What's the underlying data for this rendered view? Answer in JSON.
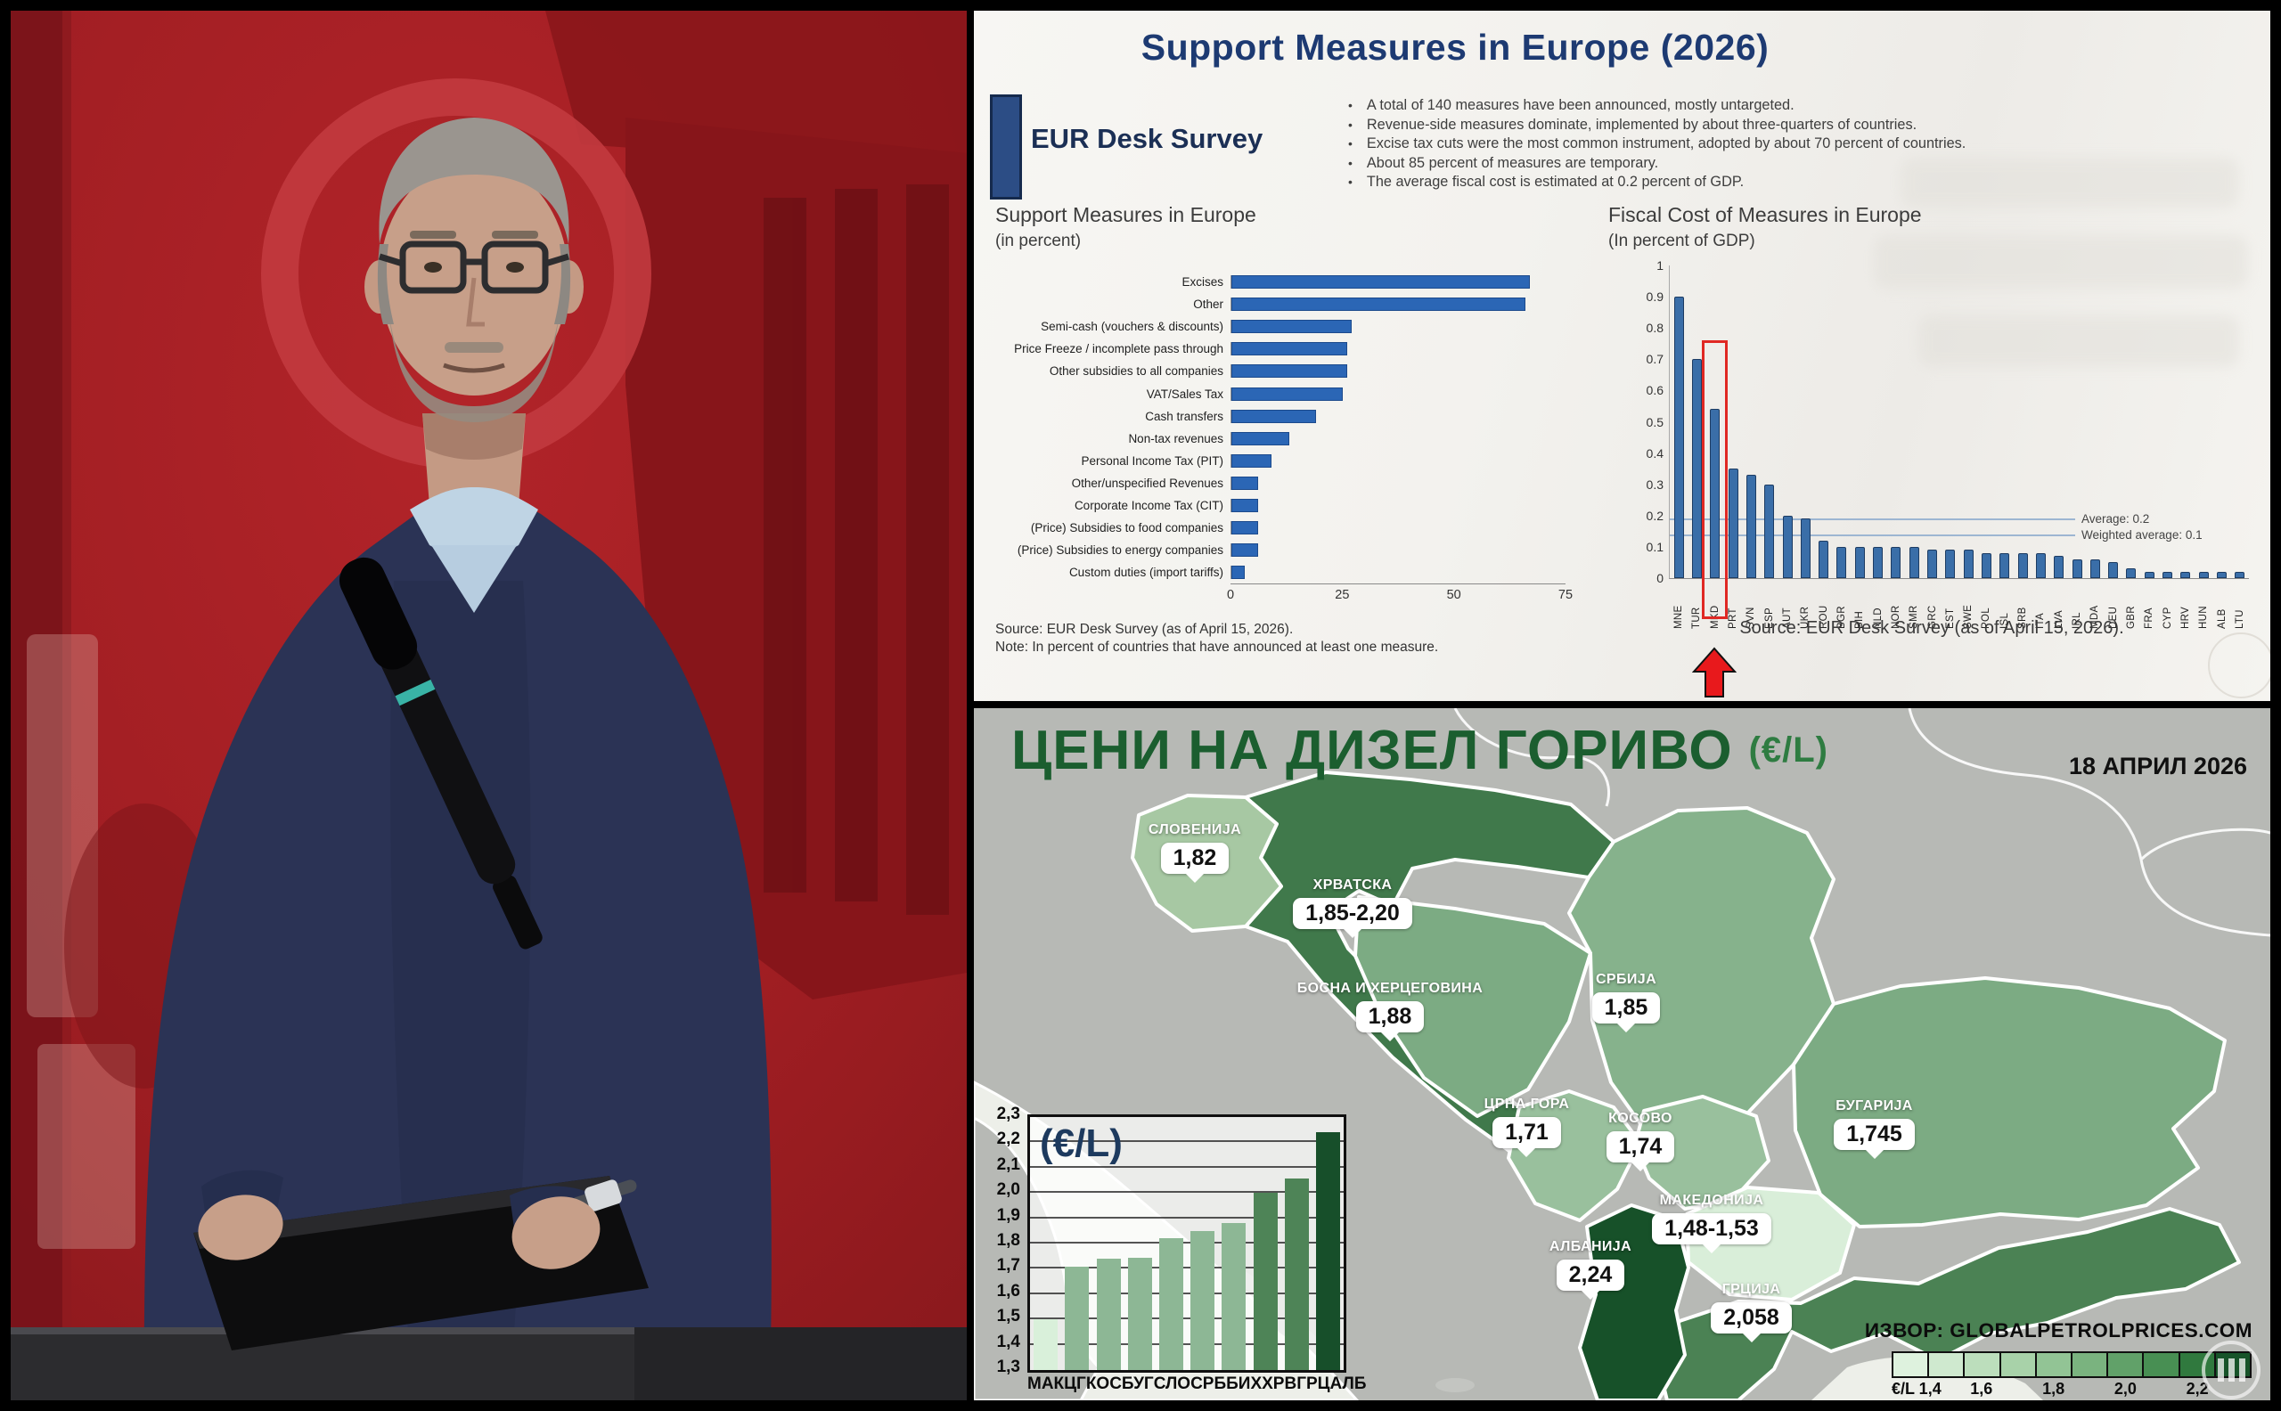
{
  "panels": {
    "doc": {
      "title": "Support Measures in Europe (2026)",
      "logo_label": "EUR Desk Survey",
      "bullets": [
        "A total of 140 measures have been announced, mostly untargeted.",
        "Revenue-side measures dominate, implemented by about three-quarters of countries.",
        "Excise tax cuts were the most common instrument, adopted by about 70 percent of countries.",
        "About 85 percent of measures are temporary.",
        "The average fiscal cost is estimated at 0.2 percent of GDP."
      ]
    },
    "map": {
      "title": "ЦЕНИ НА ДИЗЕЛ ГОРИВО",
      "unit": "(€/L)",
      "date": "18 АПРИЛ 2026",
      "source": "ИЗВОР: GLOBALPETROLPRICES.COM",
      "scale": {
        "unit_label": "€/L",
        "ticks": [
          "1,4",
          "1,6",
          "1,8",
          "2,0",
          "2,2"
        ]
      },
      "countries": [
        {
          "name": "СЛОВЕНИЈА",
          "price": "1,82",
          "shade": "light"
        },
        {
          "name": "ХРВАТСКА",
          "price": "1,85-2,20",
          "shade": "dark"
        },
        {
          "name": "БОСНА И ХЕРЦЕГОВИНА",
          "price": "1,88",
          "shade": "medium"
        },
        {
          "name": "СРБИЈА",
          "price": "1,85",
          "shade": "medium"
        },
        {
          "name": "ЦРНА ГОРА",
          "price": "1,71",
          "shade": "medium-light"
        },
        {
          "name": "КОСОВО",
          "price": "1,74",
          "shade": "medium-light"
        },
        {
          "name": "БУГАРИЈА",
          "price": "1,745",
          "shade": "medium"
        },
        {
          "name": "МАКЕДОНИЈА",
          "price": "1,48-1,53",
          "shade": "lightest"
        },
        {
          "name": "АЛБАНИЈА",
          "price": "2,24",
          "shade": "darkest"
        },
        {
          "name": "ГРЦИЈА",
          "price": "2,058",
          "shade": "dark"
        }
      ]
    }
  },
  "chart_data": [
    {
      "id": "support_measures",
      "type": "bar",
      "orientation": "horizontal",
      "title": "Support Measures in Europe",
      "subtitle": "(in percent)",
      "categories": [
        "Excises",
        "Other",
        "Semi-cash (vouchers & discounts)",
        "Price Freeze / incomplete pass through",
        "Other subsidies to all companies",
        "VAT/Sales Tax",
        "Cash transfers",
        "Non-tax revenues",
        "Personal Income Tax (PIT)",
        "Other/unspecified Revenues",
        "Corporate Income Tax (CIT)",
        "(Price) Subsidies to food companies",
        "(Price) Subsidies to energy companies",
        "Custom duties (import tariffs)"
      ],
      "values": [
        67,
        66,
        27,
        26,
        26,
        25,
        19,
        13,
        9,
        6,
        6,
        6,
        6,
        3
      ],
      "xlim": [
        0,
        75
      ],
      "xticks": [
        0,
        25,
        50,
        75
      ],
      "grid": false,
      "source": "Source: EUR Desk Survey (as of April 15, 2026).",
      "note": "Note: In percent of countries that have announced at least one measure."
    },
    {
      "id": "fiscal_cost",
      "type": "bar",
      "orientation": "vertical",
      "title": "Fiscal Cost of Measures in Europe",
      "subtitle": "(In percent of GDP)",
      "categories": [
        "MNE",
        "TUR",
        "MKD",
        "PRT",
        "SVN",
        "ESP",
        "AUT",
        "UKR",
        "ROU",
        "BGR",
        "BIH",
        "NLD",
        "NOR",
        "SMR",
        "GRC",
        "EST",
        "SWE",
        "POL",
        "ISL",
        "SRB",
        "ITA",
        "LVA",
        "IRL",
        "MDA",
        "DEU",
        "GBR",
        "FRA",
        "CYP",
        "HRV",
        "HUN",
        "ALB",
        "LTU"
      ],
      "values": [
        0.9,
        0.7,
        0.54,
        0.35,
        0.33,
        0.3,
        0.2,
        0.19,
        0.12,
        0.1,
        0.1,
        0.1,
        0.1,
        0.1,
        0.09,
        0.09,
        0.09,
        0.08,
        0.08,
        0.08,
        0.08,
        0.07,
        0.06,
        0.06,
        0.05,
        0.03,
        0.02,
        0.02,
        0.02,
        0.02,
        0.02,
        0.02
      ],
      "ylim": [
        0,
        1
      ],
      "yticks": [
        0,
        0.1,
        0.2,
        0.3,
        0.4,
        0.5,
        0.6,
        0.7,
        0.8,
        0.9,
        1
      ],
      "highlight": "MKD",
      "reference_lines": [
        {
          "label": "Average: 0.2",
          "value": 0.19
        },
        {
          "label": "Weighted average: 0.1",
          "value": 0.14
        }
      ],
      "source": "Source: EUR Desk Survey (as of April 15, 2026)."
    },
    {
      "id": "diesel_prices",
      "type": "bar",
      "orientation": "vertical",
      "title": "(€/L)",
      "categories": [
        "МАК",
        "ЦГ",
        "КОС",
        "БУГ",
        "СЛО",
        "СРБ",
        "БИХ",
        "ХРВ",
        "ГРЦ",
        "АЛБ"
      ],
      "values": [
        1.5,
        1.71,
        1.74,
        1.745,
        1.82,
        1.85,
        1.88,
        2.0,
        2.058,
        2.24
      ],
      "ylim": [
        1.3,
        2.3
      ],
      "ytick_step": 0.1,
      "grid": true
    }
  ],
  "colors": {
    "doc_navy": "#1d3a72",
    "doc_bar_blue": "#2b66b5",
    "fiscal_bar_blue": "#3a6ea8",
    "highlight_red": "#e02823",
    "map_title_green": "#1b5e2f",
    "map_green_darkest": "#174f2a",
    "map_green_dark": "#4b8254",
    "map_green_medium": "#7cab83",
    "map_green_light": "#a7c8a3",
    "map_green_lightest": "#d9eed9",
    "video_red": "#a11e23",
    "mic_teal": "#39b3a6"
  }
}
